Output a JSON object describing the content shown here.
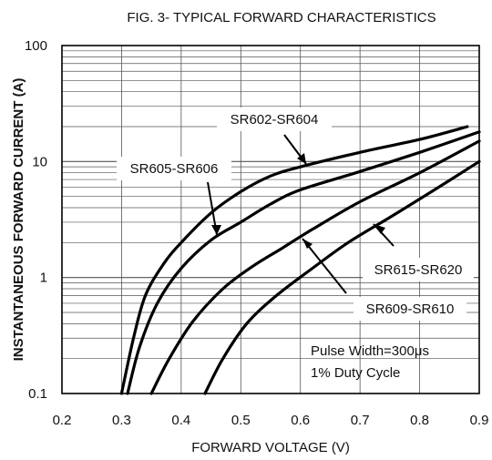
{
  "chart_data": {
    "type": "line",
    "title": "FIG. 3- TYPICAL FORWARD CHARACTERISTICS",
    "xlabel": "FORWARD VOLTAGE (V)",
    "ylabel": "INSTANTANEOUS FORWARD CURRENT (A)",
    "xlim": [
      0.2,
      0.9
    ],
    "ylim": [
      0.1,
      100
    ],
    "yscale": "log",
    "grid": true,
    "x_ticks": [
      "0.2",
      "0.3",
      "0.4",
      "0.5",
      "0.6",
      "0.7",
      "0.8",
      "0.9"
    ],
    "y_ticks": [
      "0.1",
      "1",
      "10",
      "100"
    ],
    "series": [
      {
        "name": "SR602-SR604",
        "x": [
          0.3,
          0.32,
          0.34,
          0.37,
          0.4,
          0.45,
          0.5,
          0.55,
          0.6,
          0.7,
          0.8,
          0.88
        ],
        "y": [
          0.1,
          0.3,
          0.7,
          1.3,
          2.0,
          3.6,
          5.5,
          7.5,
          9.0,
          12.0,
          15.5,
          20.0
        ]
      },
      {
        "name": "SR605-SR606",
        "x": [
          0.31,
          0.33,
          0.36,
          0.4,
          0.45,
          0.5,
          0.55,
          0.6,
          0.7,
          0.8,
          0.9
        ],
        "y": [
          0.1,
          0.25,
          0.6,
          1.2,
          2.1,
          3.0,
          4.3,
          5.7,
          8.2,
          12.0,
          18.0
        ]
      },
      {
        "name": "SR609-SR610",
        "x": [
          0.35,
          0.38,
          0.42,
          0.47,
          0.52,
          0.57,
          0.62,
          0.7,
          0.8,
          0.9
        ],
        "y": [
          0.1,
          0.2,
          0.42,
          0.8,
          1.25,
          1.8,
          2.6,
          4.5,
          8.0,
          15.0
        ]
      },
      {
        "name": "SR615-SR620",
        "x": [
          0.44,
          0.47,
          0.51,
          0.56,
          0.62,
          0.68,
          0.75,
          0.82,
          0.9
        ],
        "y": [
          0.1,
          0.2,
          0.4,
          0.7,
          1.2,
          2.0,
          3.3,
          5.5,
          10.0
        ]
      }
    ],
    "annotations": [
      {
        "text": "Pulse Width=300μs"
      },
      {
        "text": "1% Duty Cycle"
      }
    ]
  }
}
